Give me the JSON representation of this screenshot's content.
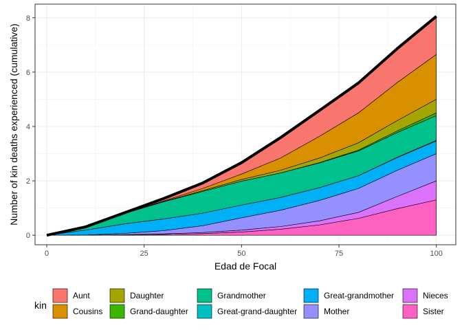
{
  "chart_data": {
    "type": "area",
    "stacked": true,
    "xlabel": "Edad de Focal",
    "ylabel": "Number of kin deaths experienced (cumulative)",
    "xlim": [
      -3,
      105
    ],
    "ylim": [
      -0.35,
      8.5
    ],
    "xticks": [
      0,
      25,
      50,
      75,
      100
    ],
    "yticks": [
      0,
      2,
      4,
      6,
      8
    ],
    "grid": true,
    "legend_title": "kin",
    "legend_position": "bottom",
    "x": [
      0,
      10,
      20,
      30,
      40,
      50,
      60,
      70,
      80,
      90,
      100
    ],
    "series": [
      {
        "name": "Sister",
        "color": "#FF61C3",
        "values": [
          0,
          0,
          0.01,
          0.03,
          0.06,
          0.12,
          0.22,
          0.38,
          0.62,
          0.98,
          1.3
        ]
      },
      {
        "name": "Nieces",
        "color": "#DB72FB",
        "values": [
          0,
          0,
          0.01,
          0.02,
          0.04,
          0.07,
          0.1,
          0.15,
          0.22,
          0.45,
          0.7
        ]
      },
      {
        "name": "Mother",
        "color": "#9590FF",
        "values": [
          0,
          0.01,
          0.05,
          0.12,
          0.25,
          0.45,
          0.6,
          0.75,
          0.88,
          0.96,
          1.0
        ]
      },
      {
        "name": "Great-grandmother",
        "color": "#00B0F6",
        "values": [
          0,
          0.18,
          0.35,
          0.43,
          0.46,
          0.47,
          0.47,
          0.47,
          0.47,
          0.47,
          0.47
        ]
      },
      {
        "name": "Great-grand-daughter",
        "color": "#00BFC4",
        "values": [
          0,
          0,
          0,
          0,
          0,
          0,
          0,
          0,
          0,
          0.01,
          0.02
        ]
      },
      {
        "name": "Grandmother",
        "color": "#00C08B",
        "values": [
          0,
          0.12,
          0.38,
          0.63,
          0.8,
          0.88,
          0.9,
          0.91,
          0.91,
          0.91,
          0.91
        ]
      },
      {
        "name": "Grand-daughter",
        "color": "#39B600",
        "values": [
          0,
          0,
          0,
          0,
          0,
          0,
          0,
          0.01,
          0.03,
          0.06,
          0.1
        ]
      },
      {
        "name": "Daughter",
        "color": "#A3A500",
        "values": [
          0,
          0,
          0,
          0.01,
          0.03,
          0.06,
          0.1,
          0.17,
          0.27,
          0.38,
          0.5
        ]
      },
      {
        "name": "Cousins",
        "color": "#D89000",
        "values": [
          0,
          0,
          0.01,
          0.02,
          0.08,
          0.2,
          0.45,
          0.8,
          1.1,
          1.4,
          1.65
        ]
      },
      {
        "name": "Aunt",
        "color": "#F8766D",
        "values": [
          0,
          0,
          0.02,
          0.09,
          0.2,
          0.42,
          0.75,
          0.95,
          1.1,
          1.25,
          1.4
        ]
      }
    ],
    "legend": [
      {
        "name": "Aunt",
        "color": "#F8766D"
      },
      {
        "name": "Cousins",
        "color": "#D89000"
      },
      {
        "name": "Daughter",
        "color": "#A3A500"
      },
      {
        "name": "Grand-daughter",
        "color": "#39B600"
      },
      {
        "name": "Grandmother",
        "color": "#00C08B"
      },
      {
        "name": "Great-grand-daughter",
        "color": "#00BFC4"
      },
      {
        "name": "Great-grandmother",
        "color": "#00B0F6"
      },
      {
        "name": "Mother",
        "color": "#9590FF"
      },
      {
        "name": "Nieces",
        "color": "#DB72FB"
      },
      {
        "name": "Sister",
        "color": "#FF61C3"
      }
    ]
  }
}
